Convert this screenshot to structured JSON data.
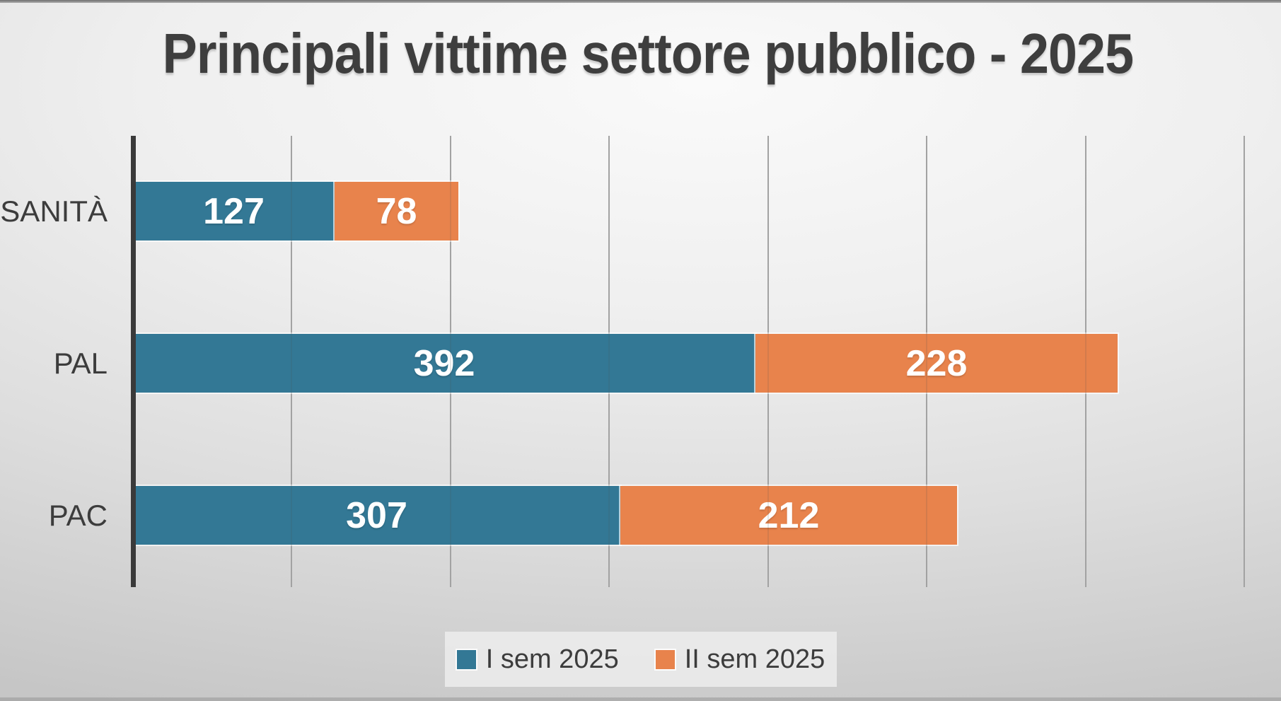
{
  "title": "Principali vittime settore pubblico - 2025",
  "chart_data": {
    "type": "bar",
    "orientation": "horizontal",
    "stacked": true,
    "title": "Principali vittime settore pubblico - 2025",
    "categories": [
      "SANITÀ",
      "PAL",
      "PAC"
    ],
    "series": [
      {
        "name": "I sem 2025",
        "color": "#337895",
        "values": [
          127,
          392,
          307
        ]
      },
      {
        "name": "II sem 2025",
        "color": "#E8834C",
        "values": [
          78,
          228,
          212
        ]
      }
    ],
    "totals": [
      205,
      620,
      519
    ],
    "value_axis": {
      "min": 0,
      "max": 700,
      "grid_step": 100,
      "gridlines": true,
      "tick_labels_visible": false
    },
    "category_axis": {
      "label_color": "#3C3C3C"
    },
    "data_labels": {
      "visible": true,
      "color": "#FFFFFF"
    },
    "legend": {
      "position": "bottom",
      "entries": [
        "I sem 2025",
        "II sem 2025"
      ]
    }
  },
  "colors": {
    "series1": "#337895",
    "series2": "#E8834C",
    "title_text": "#3E3E3E",
    "axis_line": "#3A3A3A",
    "gridline": "#B0B0B0",
    "legend_background": "#EAEAEA",
    "background_light": "#FAFAFA",
    "background_dark": "#C6C6C6"
  }
}
